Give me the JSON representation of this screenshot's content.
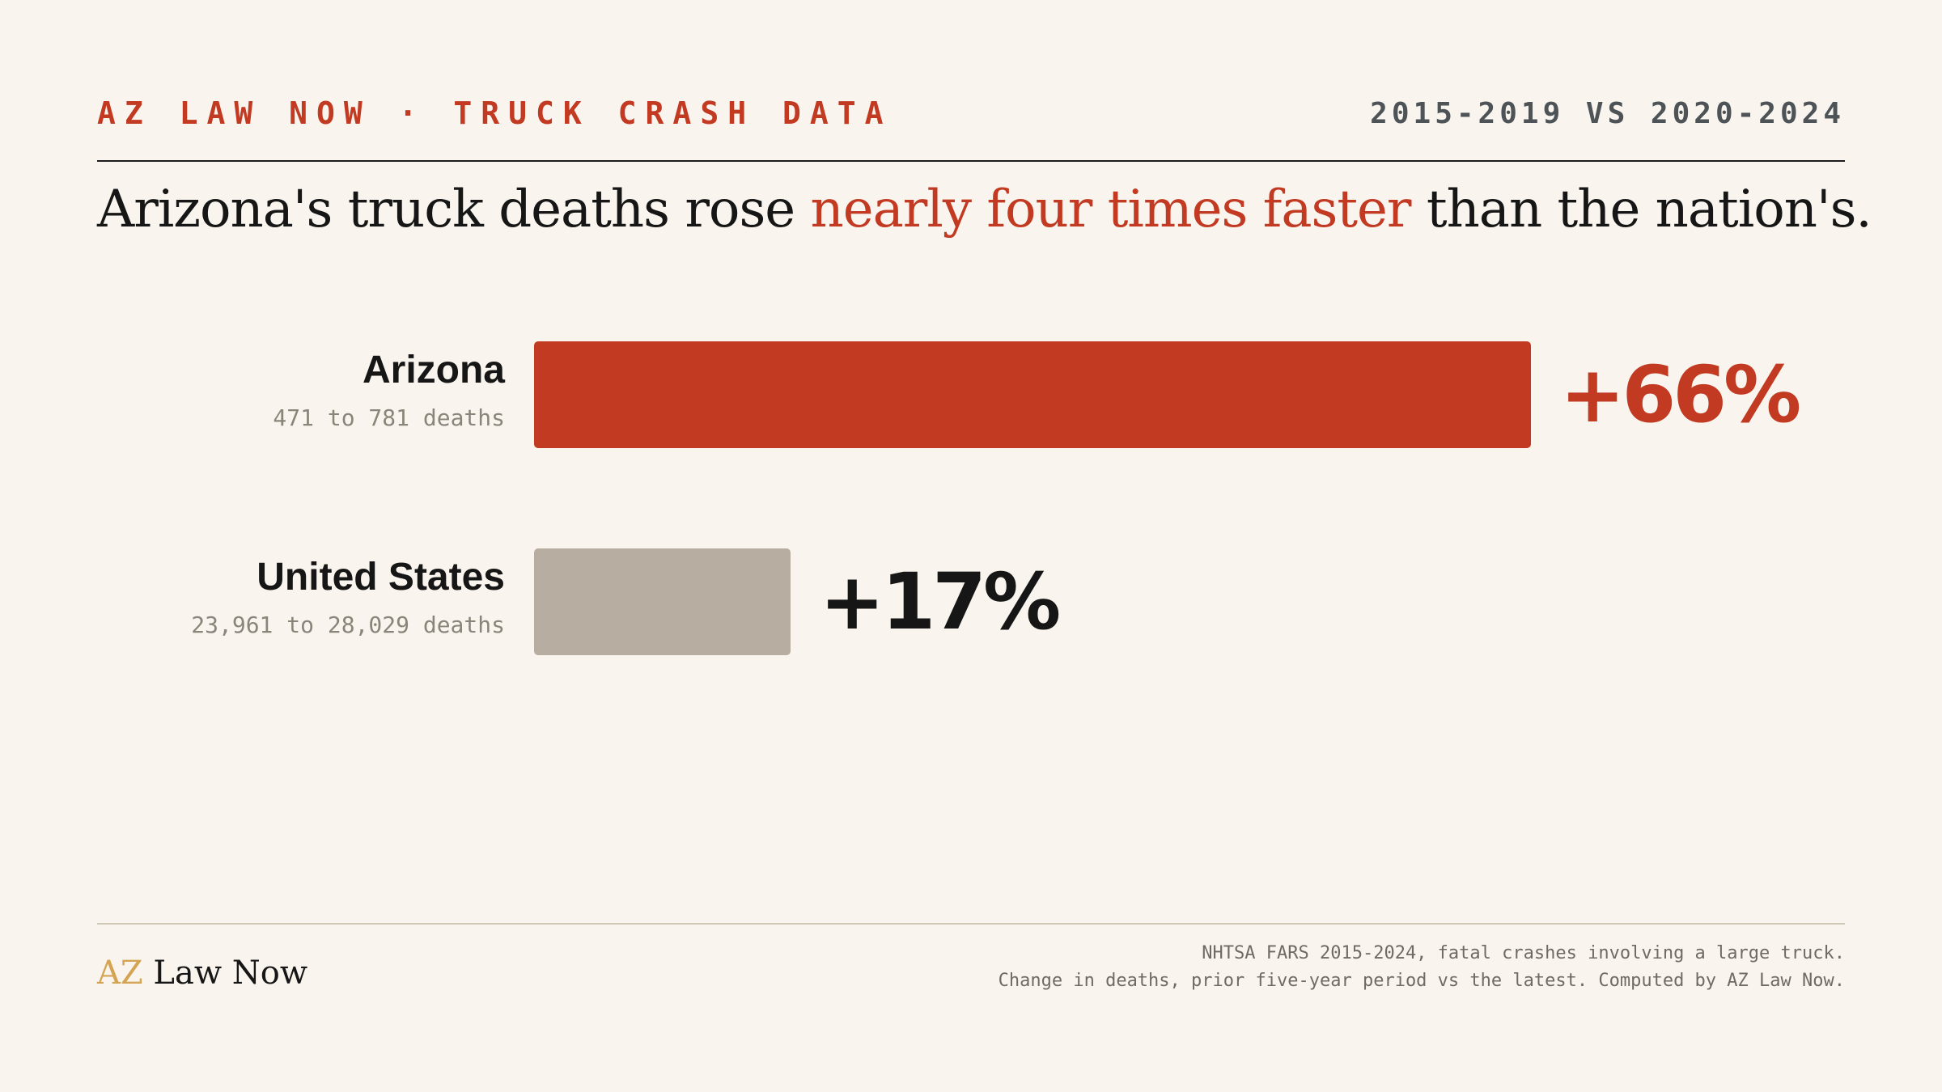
{
  "header": {
    "kicker": "AZ LAW NOW · TRUCK CRASH DATA",
    "period": "2015-2019 VS 2020-2024"
  },
  "headline": {
    "before": "Arizona's truck deaths rose ",
    "accent": "nearly four times faster",
    "after": " than the nation's."
  },
  "chart_data": {
    "type": "bar",
    "orientation": "horizontal",
    "categories": [
      "Arizona",
      "United States"
    ],
    "values": [
      66,
      17
    ],
    "value_labels": [
      "+66%",
      "+17%"
    ],
    "sublabels": [
      "471 to 781 deaths",
      "23,961 to 28,029 deaths"
    ],
    "bar_colors": [
      "#c23a22",
      "#b8ada1"
    ],
    "label_colors": [
      "#c23a22",
      "#161616"
    ]
  },
  "footer": {
    "logo_prefix": "AZ",
    "logo_rest": " Law Now",
    "source_line1": "NHTSA FARS 2015-2024, fatal crashes involving a large truck.",
    "source_line2": "Change in deaths, prior five-year period vs the latest. Computed by AZ Law Now."
  },
  "colors": {
    "accent": "#c23a22",
    "background": "#f9f5ee",
    "logo_gold": "#d4a452"
  }
}
